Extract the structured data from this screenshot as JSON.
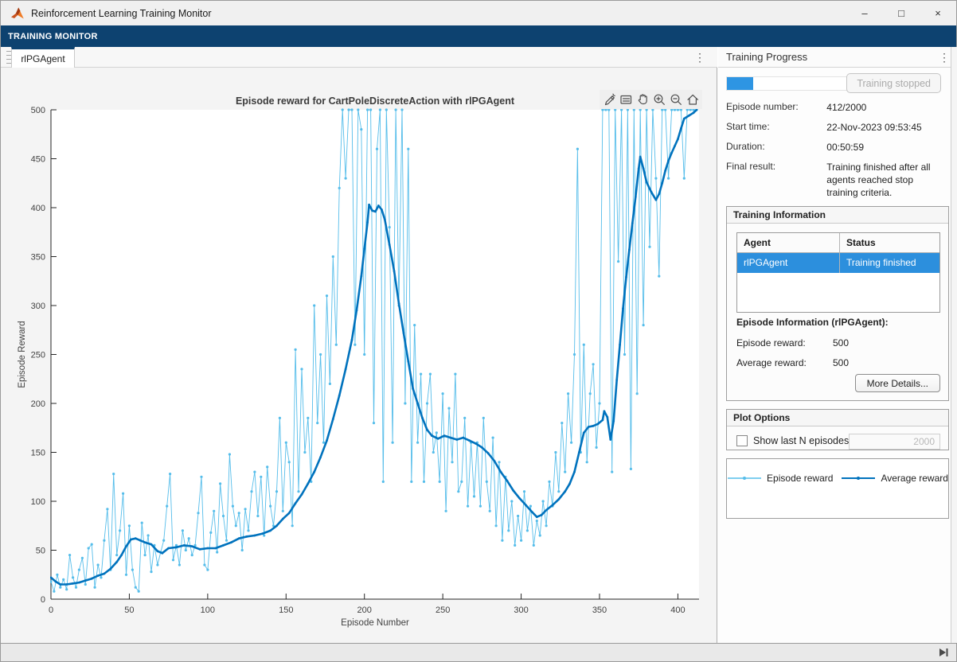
{
  "window": {
    "title": "Reinforcement Learning Training Monitor",
    "controls": {
      "minimize": "–",
      "maximize": "□",
      "close": "×"
    }
  },
  "ribbon": {
    "label": "TRAINING MONITOR"
  },
  "tabs": {
    "active": "rlPGAgent"
  },
  "icons": {
    "kebab": "⋮"
  },
  "colors": {
    "ribbon_navy": "#0d4270",
    "selection_blue": "#2c8fdd",
    "progress_blue": "#2e95e3",
    "episode_line": "#55bdea",
    "average_line": "#0072bd"
  },
  "training_progress": {
    "title": "Training Progress",
    "progress_percent": 20.6,
    "stop_button": "Training stopped",
    "fields": [
      {
        "label": "Episode number:",
        "value": "412/2000"
      },
      {
        "label": "Start time:",
        "value": "22-Nov-2023 09:53:45"
      },
      {
        "label": "Duration:",
        "value": "00:50:59"
      },
      {
        "label": "Final result:",
        "value": "Training finished after all agents reached stop training criteria."
      }
    ]
  },
  "training_information": {
    "title": "Training Information",
    "table": {
      "headers": [
        "Agent",
        "Status"
      ],
      "rows": [
        [
          "rlPGAgent",
          "Training finished"
        ]
      ]
    },
    "episode_info_title": "Episode Information (rlPGAgent):",
    "fields": [
      {
        "label": "Episode reward:",
        "value": "500"
      },
      {
        "label": "Average reward:",
        "value": "500"
      }
    ],
    "more_details_button": "More Details..."
  },
  "plot_options": {
    "title": "Plot Options",
    "checkbox_label": "Show last N episodes",
    "checkbox_checked": false,
    "n_value": "2000"
  },
  "chart_data": {
    "type": "line",
    "title": "Episode reward for CartPoleDiscreteAction with rlPGAgent",
    "xlabel": "Episode Number",
    "ylabel": "Episode Reward",
    "xlim": [
      0,
      413.5
    ],
    "ylim": [
      0,
      500
    ],
    "xticks": [
      0,
      50,
      100,
      150,
      200,
      250,
      300,
      350,
      400
    ],
    "yticks": [
      0,
      50,
      100,
      150,
      200,
      250,
      300,
      350,
      400,
      450,
      500
    ],
    "grid": false,
    "legend_position": "separate-panel-below-plot-options",
    "series": [
      {
        "name": "Episode reward",
        "color": "#55bdea",
        "line_width": 0.9,
        "marker_radius": 1.6,
        "x_start": 0,
        "x_step": 2,
        "y": [
          18,
          8,
          25,
          12,
          20,
          10,
          45,
          22,
          12,
          30,
          42,
          15,
          52,
          56,
          12,
          35,
          22,
          60,
          92,
          30,
          128,
          45,
          70,
          108,
          25,
          75,
          30,
          12,
          8,
          78,
          45,
          65,
          28,
          55,
          35,
          48,
          60,
          95,
          128,
          40,
          55,
          35,
          70,
          50,
          62,
          45,
          55,
          88,
          125,
          35,
          30,
          68,
          90,
          48,
          118,
          85,
          60,
          148,
          95,
          75,
          88,
          50,
          92,
          70,
          110,
          130,
          85,
          125,
          65,
          135,
          95,
          75,
          110,
          185,
          90,
          160,
          140,
          75,
          255,
          110,
          235,
          150,
          185,
          120,
          300,
          180,
          250,
          160,
          310,
          220,
          350,
          260,
          420,
          500,
          430,
          500,
          500,
          260,
          500,
          480,
          250,
          500,
          500,
          180,
          460,
          500,
          120,
          500,
          380,
          160,
          500,
          300,
          500,
          200,
          460,
          120,
          280,
          160,
          230,
          120,
          200,
          230,
          150,
          170,
          120,
          210,
          90,
          195,
          140,
          230,
          110,
          120,
          185,
          95,
          160,
          105,
          160,
          95,
          185,
          120,
          90,
          165,
          75,
          140,
          60,
          125,
          70,
          100,
          55,
          85,
          60,
          110,
          70,
          95,
          55,
          80,
          65,
          100,
          75,
          120,
          95,
          150,
          110,
          180,
          130,
          210,
          160,
          250,
          460,
          150,
          260,
          140,
          210,
          240,
          155,
          200,
          500,
          500,
          500,
          130,
          500,
          345,
          500,
          250,
          500,
          133,
          500,
          210,
          500,
          280,
          500,
          360,
          500,
          430,
          330,
          500,
          500,
          430,
          500,
          500,
          500,
          500,
          430,
          500,
          500,
          500,
          500
        ]
      },
      {
        "name": "Average reward",
        "color": "#0072bd",
        "line_width": 2.6,
        "marker_radius": 1.4,
        "points": [
          [
            0,
            22
          ],
          [
            3,
            18
          ],
          [
            6,
            15
          ],
          [
            10,
            15
          ],
          [
            14,
            16
          ],
          [
            18,
            17
          ],
          [
            22,
            19
          ],
          [
            26,
            21
          ],
          [
            30,
            24
          ],
          [
            34,
            26
          ],
          [
            38,
            31
          ],
          [
            42,
            38
          ],
          [
            45,
            45
          ],
          [
            48,
            54
          ],
          [
            51,
            61
          ],
          [
            54,
            62
          ],
          [
            57,
            60
          ],
          [
            60,
            58
          ],
          [
            64,
            56
          ],
          [
            68,
            49
          ],
          [
            71,
            47
          ],
          [
            75,
            52
          ],
          [
            80,
            53
          ],
          [
            85,
            55
          ],
          [
            90,
            54
          ],
          [
            95,
            51
          ],
          [
            100,
            52
          ],
          [
            105,
            52
          ],
          [
            110,
            55
          ],
          [
            115,
            58
          ],
          [
            120,
            62
          ],
          [
            125,
            64
          ],
          [
            130,
            65
          ],
          [
            135,
            67
          ],
          [
            140,
            70
          ],
          [
            144,
            75
          ],
          [
            148,
            82
          ],
          [
            152,
            88
          ],
          [
            156,
            98
          ],
          [
            160,
            107
          ],
          [
            164,
            118
          ],
          [
            168,
            130
          ],
          [
            172,
            145
          ],
          [
            176,
            162
          ],
          [
            180,
            184
          ],
          [
            184,
            208
          ],
          [
            188,
            235
          ],
          [
            192,
            265
          ],
          [
            195,
            295
          ],
          [
            198,
            330
          ],
          [
            200,
            358
          ],
          [
            202,
            385
          ],
          [
            203,
            403
          ],
          [
            205,
            397
          ],
          [
            207,
            396
          ],
          [
            209,
            402
          ],
          [
            211,
            398
          ],
          [
            213,
            388
          ],
          [
            216,
            362
          ],
          [
            219,
            335
          ],
          [
            222,
            302
          ],
          [
            225,
            272
          ],
          [
            228,
            243
          ],
          [
            231,
            215
          ],
          [
            234,
            200
          ],
          [
            237,
            185
          ],
          [
            240,
            173
          ],
          [
            243,
            167
          ],
          [
            247,
            164
          ],
          [
            251,
            167
          ],
          [
            255,
            165
          ],
          [
            259,
            163
          ],
          [
            263,
            165
          ],
          [
            267,
            162
          ],
          [
            271,
            159
          ],
          [
            275,
            155
          ],
          [
            279,
            149
          ],
          [
            283,
            141
          ],
          [
            287,
            130
          ],
          [
            291,
            121
          ],
          [
            295,
            111
          ],
          [
            299,
            103
          ],
          [
            303,
            96
          ],
          [
            307,
            89
          ],
          [
            310,
            84
          ],
          [
            313,
            86
          ],
          [
            316,
            91
          ],
          [
            320,
            96
          ],
          [
            324,
            102
          ],
          [
            328,
            110
          ],
          [
            331,
            118
          ],
          [
            334,
            130
          ],
          [
            337,
            150
          ],
          [
            340,
            170
          ],
          [
            343,
            176
          ],
          [
            346,
            177
          ],
          [
            349,
            179
          ],
          [
            352,
            183
          ],
          [
            353,
            192
          ],
          [
            355,
            186
          ],
          [
            357,
            163
          ],
          [
            359,
            182
          ],
          [
            361,
            224
          ],
          [
            363,
            260
          ],
          [
            365,
            297
          ],
          [
            367,
            329
          ],
          [
            369,
            357
          ],
          [
            371,
            384
          ],
          [
            373,
            411
          ],
          [
            375,
            440
          ],
          [
            376,
            452
          ],
          [
            378,
            440
          ],
          [
            380,
            426
          ],
          [
            383,
            416
          ],
          [
            386,
            408
          ],
          [
            388,
            414
          ],
          [
            390,
            425
          ],
          [
            392,
            438
          ],
          [
            394,
            448
          ],
          [
            396,
            456
          ],
          [
            398,
            463
          ],
          [
            400,
            470
          ],
          [
            402,
            481
          ],
          [
            404,
            491
          ],
          [
            407,
            494
          ],
          [
            410,
            497
          ],
          [
            412,
            500
          ]
        ]
      }
    ]
  }
}
